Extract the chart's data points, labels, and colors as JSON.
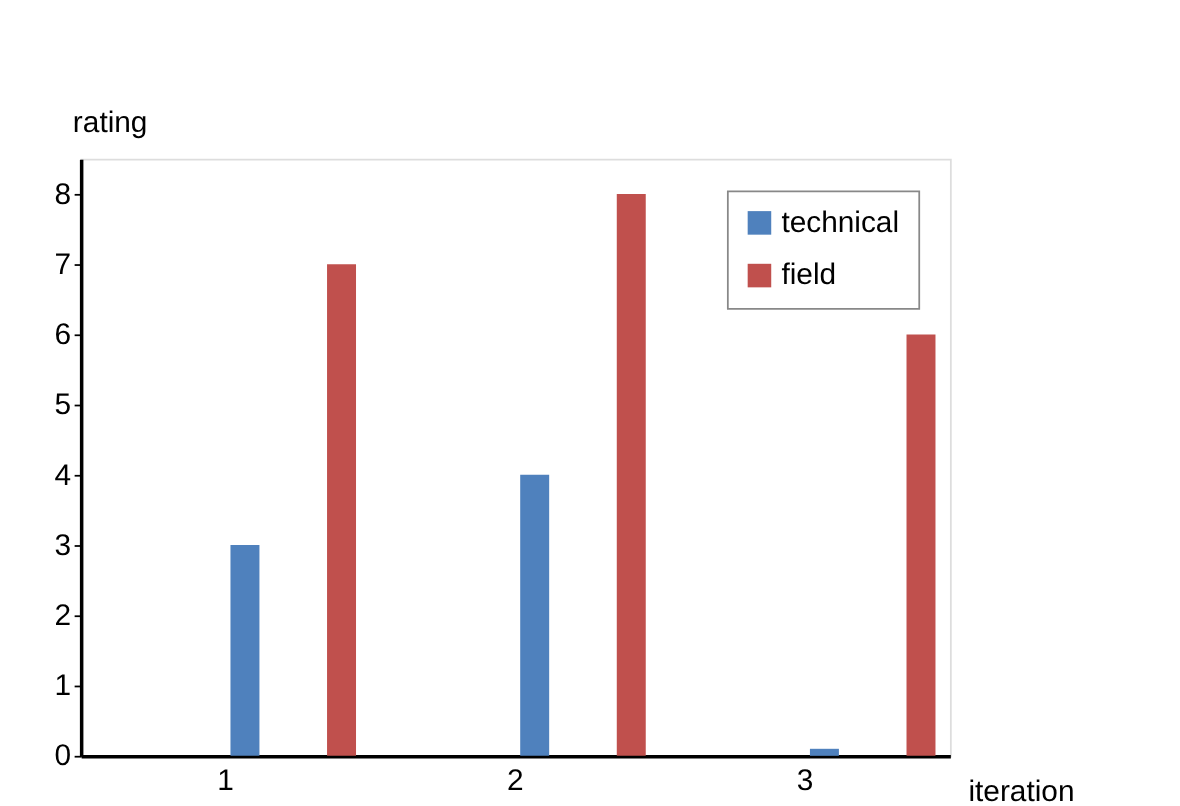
{
  "chart_data": {
    "type": "bar",
    "xlabel": "iteration",
    "ylabel": "rating",
    "categories": [
      "1",
      "2",
      "3"
    ],
    "series": [
      {
        "name": "technical",
        "color": "#4f81bd",
        "values": [
          3,
          4,
          0.1
        ]
      },
      {
        "name": "field",
        "color": "#c0504d",
        "values": [
          7,
          8,
          6
        ]
      }
    ],
    "ylim": [
      0,
      8.5
    ],
    "yticks": [
      0,
      1,
      2,
      3,
      4,
      5,
      6,
      7,
      8
    ],
    "grid": false,
    "legend": "top right"
  }
}
